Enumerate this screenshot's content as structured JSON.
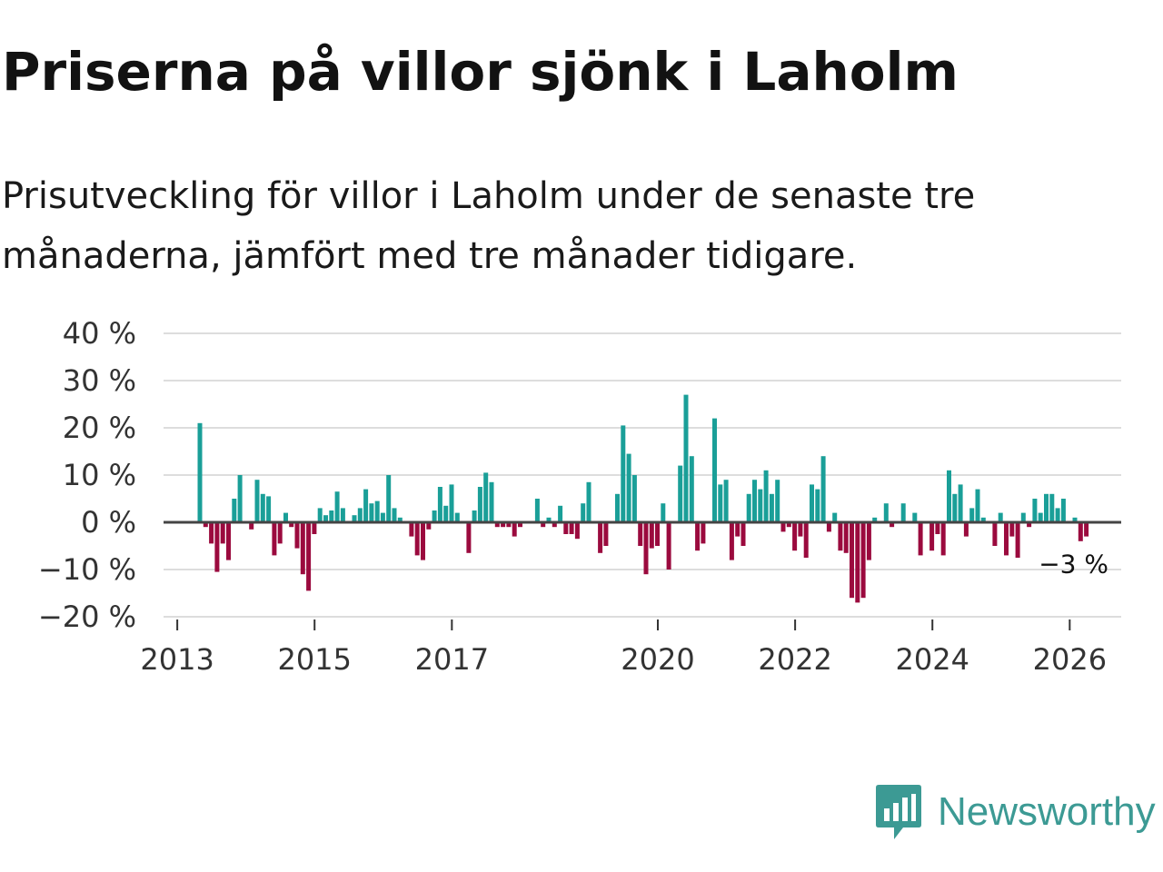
{
  "title": "Priserna på villor sjönk i Laholm",
  "subtitle": "Prisutveckling för villor i Laholm under de senaste tre månaderna, jämfört med tre månader tidigare.",
  "logo": {
    "icon": "newsworthy-logo-icon",
    "text": "Newsworthy"
  },
  "colors": {
    "positive": "#1a9f98",
    "negative": "#9b0a3e",
    "grid": "#dddddd",
    "zero": "#444444"
  },
  "chart_data": {
    "type": "bar",
    "title": "Priserna på villor sjönk i Laholm",
    "subtitle": "Prisutveckling för villor i Laholm under de senaste tre månaderna, jämfört med tre månader tidigare.",
    "xlabel": "",
    "ylabel": "",
    "ylim": [
      -20,
      40
    ],
    "xlim": [
      2012.8,
      2026.75
    ],
    "grid": true,
    "yticks": [
      {
        "value": 40,
        "label": "40 %"
      },
      {
        "value": 30,
        "label": "30 %"
      },
      {
        "value": 20,
        "label": "20 %"
      },
      {
        "value": 10,
        "label": "10 %"
      },
      {
        "value": 0,
        "label": "0 %"
      },
      {
        "value": -10,
        "label": "−10 %"
      },
      {
        "value": -20,
        "label": "−20 %"
      }
    ],
    "xticks": [
      {
        "value": 2013,
        "label": "2013"
      },
      {
        "value": 2015,
        "label": "2015"
      },
      {
        "value": 2017,
        "label": "2017"
      },
      {
        "value": 2020,
        "label": "2020"
      },
      {
        "value": 2022,
        "label": "2022"
      },
      {
        "value": 2024,
        "label": "2024"
      },
      {
        "value": 2026,
        "label": "2026"
      }
    ],
    "annotation": {
      "label": "−3 %",
      "value": -3,
      "x": 2026.08
    },
    "series": [
      {
        "name": "Prisutveckling",
        "start": 2013.33,
        "step": 0.0833,
        "values": [
          21,
          -1,
          -4.5,
          -10.5,
          -4.5,
          -8,
          5,
          10,
          0,
          -1.5,
          9,
          6,
          5.5,
          -7,
          -4.5,
          2,
          -1,
          -5.5,
          -11,
          -14.5,
          -2.5,
          3,
          1.5,
          2.5,
          6.5,
          3,
          0,
          1.5,
          3,
          7,
          4,
          4.5,
          2,
          10,
          3,
          1,
          0,
          -3,
          -7,
          -8,
          -1.5,
          2.5,
          7.5,
          3.5,
          8,
          2,
          0,
          -6.5,
          2.5,
          7.5,
          10.5,
          8.5,
          -1,
          -1,
          -1,
          -3,
          -1,
          0,
          0,
          5,
          -1,
          1,
          -1,
          3.5,
          -2.5,
          -2.5,
          -3.5,
          4,
          8.5,
          0,
          -6.5,
          -5,
          0,
          6,
          20.5,
          14.5,
          10,
          -5,
          -11,
          -5.5,
          -5,
          4,
          -10,
          0,
          12,
          27,
          14,
          -6,
          -4.5,
          0,
          22,
          8,
          9,
          -8,
          -3,
          -5,
          6,
          9,
          7,
          11,
          6,
          9,
          -2,
          -1,
          -6,
          -3,
          -7.5,
          8,
          7,
          14,
          -2,
          2,
          -6,
          -6.5,
          -16,
          -17,
          -16,
          -8,
          1,
          0,
          4,
          -1,
          0,
          4,
          0,
          2,
          -7,
          0,
          -6,
          -2.5,
          -7,
          11,
          6,
          8,
          -3,
          3,
          7,
          1,
          0,
          -5,
          2,
          -7,
          -3,
          -7.5,
          2,
          -1,
          5,
          2,
          6,
          6,
          3,
          5,
          0,
          1,
          -4,
          -3
        ]
      }
    ]
  }
}
